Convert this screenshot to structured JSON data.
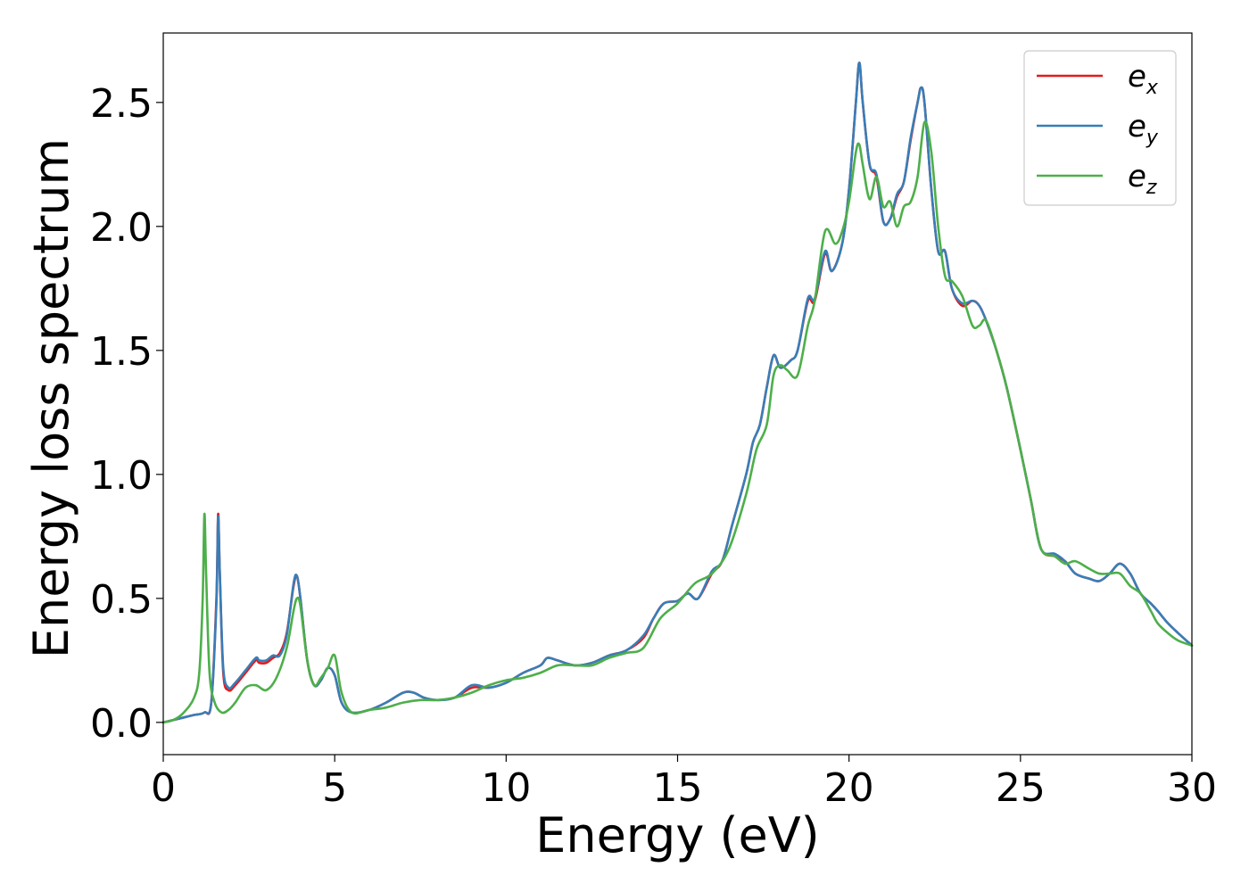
{
  "chart_data": {
    "type": "line",
    "xlabel": "Energy (eV)",
    "ylabel": "Energy loss spectrum",
    "xlim": [
      0,
      30
    ],
    "ylim": [
      -0.13,
      2.78
    ],
    "xticks": [
      0,
      5,
      10,
      15,
      20,
      25,
      30
    ],
    "xtick_labels": [
      "0",
      "5",
      "10",
      "15",
      "20",
      "25",
      "30"
    ],
    "yticks": [
      0.0,
      0.5,
      1.0,
      1.5,
      2.0,
      2.5
    ],
    "ytick_labels": [
      "0.0",
      "0.5",
      "1.0",
      "1.5",
      "2.0",
      "2.5"
    ],
    "grid": false,
    "legend_position": "top-right",
    "series": [
      {
        "name": "e",
        "subscript": "x",
        "color": "#e41a1c",
        "x": [
          0,
          0.3,
          0.6,
          0.9,
          1.2,
          1.4,
          1.55,
          1.6,
          1.65,
          1.75,
          1.9,
          2.1,
          2.4,
          2.7,
          2.8,
          3.0,
          3.2,
          3.4,
          3.6,
          3.8,
          3.9,
          4.0,
          4.2,
          4.4,
          4.6,
          4.8,
          5.0,
          5.2,
          5.5,
          6.0,
          6.5,
          7.0,
          7.3,
          7.6,
          8.0,
          8.5,
          9.0,
          9.5,
          10.0,
          10.5,
          11.0,
          11.2,
          11.5,
          12.0,
          12.5,
          13.0,
          13.5,
          14.0,
          14.3,
          14.6,
          15.0,
          15.3,
          15.6,
          16.0,
          16.3,
          16.6,
          17.0,
          17.2,
          17.4,
          17.6,
          17.8,
          18.0,
          18.3,
          18.5,
          18.8,
          19.0,
          19.3,
          19.5,
          19.8,
          20.0,
          20.2,
          20.3,
          20.4,
          20.6,
          20.8,
          21.0,
          21.2,
          21.4,
          21.6,
          21.8,
          22.0,
          22.1,
          22.2,
          22.4,
          22.6,
          22.8,
          23.0,
          23.3,
          23.6,
          23.8,
          24.0,
          24.3,
          24.6,
          25.0,
          25.3,
          25.6,
          26.0,
          26.3,
          26.6,
          27.0,
          27.3,
          27.6,
          27.9,
          28.2,
          28.5,
          28.8,
          29.0,
          29.3,
          29.6,
          30.0
        ],
        "values": [
          0,
          0.01,
          0.02,
          0.03,
          0.04,
          0.08,
          0.5,
          0.84,
          0.6,
          0.2,
          0.13,
          0.15,
          0.2,
          0.25,
          0.24,
          0.24,
          0.26,
          0.28,
          0.36,
          0.55,
          0.59,
          0.5,
          0.25,
          0.15,
          0.17,
          0.22,
          0.19,
          0.08,
          0.04,
          0.05,
          0.08,
          0.12,
          0.12,
          0.1,
          0.09,
          0.1,
          0.14,
          0.14,
          0.16,
          0.2,
          0.23,
          0.26,
          0.25,
          0.23,
          0.24,
          0.27,
          0.29,
          0.34,
          0.42,
          0.48,
          0.49,
          0.52,
          0.5,
          0.6,
          0.65,
          0.8,
          1.0,
          1.13,
          1.2,
          1.35,
          1.48,
          1.43,
          1.46,
          1.5,
          1.7,
          1.7,
          1.89,
          1.82,
          1.93,
          2.15,
          2.5,
          2.66,
          2.5,
          2.25,
          2.2,
          2.02,
          2.03,
          2.12,
          2.18,
          2.35,
          2.5,
          2.56,
          2.5,
          2.15,
          1.9,
          1.9,
          1.75,
          1.68,
          1.7,
          1.68,
          1.62,
          1.5,
          1.35,
          1.1,
          0.9,
          0.7,
          0.67,
          0.65,
          0.6,
          0.58,
          0.57,
          0.6,
          0.64,
          0.6,
          0.52,
          0.48,
          0.45,
          0.4,
          0.36,
          0.31
        ]
      },
      {
        "name": "e",
        "subscript": "y",
        "color": "#377eb8",
        "x": [
          0,
          0.3,
          0.6,
          0.9,
          1.2,
          1.4,
          1.55,
          1.6,
          1.65,
          1.75,
          1.9,
          2.1,
          2.4,
          2.7,
          2.8,
          3.0,
          3.2,
          3.4,
          3.6,
          3.8,
          3.9,
          4.0,
          4.2,
          4.4,
          4.6,
          4.8,
          5.0,
          5.2,
          5.5,
          6.0,
          6.5,
          7.0,
          7.3,
          7.6,
          8.0,
          8.5,
          9.0,
          9.5,
          10.0,
          10.5,
          11.0,
          11.2,
          11.5,
          12.0,
          12.5,
          13.0,
          13.5,
          14.0,
          14.3,
          14.6,
          15.0,
          15.3,
          15.6,
          16.0,
          16.3,
          16.6,
          17.0,
          17.2,
          17.4,
          17.6,
          17.8,
          18.0,
          18.3,
          18.5,
          18.8,
          19.0,
          19.3,
          19.5,
          19.8,
          20.0,
          20.2,
          20.3,
          20.4,
          20.6,
          20.8,
          21.0,
          21.2,
          21.4,
          21.6,
          21.8,
          22.0,
          22.1,
          22.2,
          22.4,
          22.6,
          22.8,
          23.0,
          23.3,
          23.6,
          23.8,
          24.0,
          24.3,
          24.6,
          25.0,
          25.3,
          25.6,
          26.0,
          26.3,
          26.6,
          27.0,
          27.3,
          27.6,
          27.9,
          28.2,
          28.5,
          28.8,
          29.0,
          29.3,
          29.6,
          30.0
        ],
        "values": [
          0,
          0.01,
          0.02,
          0.03,
          0.04,
          0.08,
          0.48,
          0.83,
          0.6,
          0.22,
          0.14,
          0.16,
          0.21,
          0.26,
          0.25,
          0.25,
          0.27,
          0.27,
          0.35,
          0.56,
          0.59,
          0.5,
          0.25,
          0.15,
          0.17,
          0.22,
          0.19,
          0.08,
          0.04,
          0.05,
          0.08,
          0.12,
          0.12,
          0.1,
          0.09,
          0.1,
          0.15,
          0.14,
          0.16,
          0.2,
          0.23,
          0.26,
          0.25,
          0.23,
          0.24,
          0.27,
          0.29,
          0.35,
          0.42,
          0.48,
          0.49,
          0.52,
          0.5,
          0.61,
          0.65,
          0.8,
          1.0,
          1.13,
          1.2,
          1.35,
          1.48,
          1.43,
          1.46,
          1.5,
          1.71,
          1.71,
          1.9,
          1.82,
          1.93,
          2.15,
          2.5,
          2.66,
          2.5,
          2.25,
          2.21,
          2.02,
          2.03,
          2.13,
          2.18,
          2.36,
          2.5,
          2.56,
          2.5,
          2.15,
          1.9,
          1.9,
          1.75,
          1.69,
          1.7,
          1.68,
          1.62,
          1.5,
          1.35,
          1.1,
          0.9,
          0.7,
          0.68,
          0.65,
          0.6,
          0.58,
          0.57,
          0.6,
          0.64,
          0.6,
          0.52,
          0.48,
          0.45,
          0.4,
          0.36,
          0.31
        ]
      },
      {
        "name": "e",
        "subscript": "z",
        "color": "#4daf4a",
        "x": [
          0,
          0.3,
          0.6,
          0.9,
          1.05,
          1.15,
          1.2,
          1.25,
          1.35,
          1.5,
          1.7,
          1.9,
          2.1,
          2.4,
          2.7,
          3.0,
          3.3,
          3.6,
          3.8,
          3.9,
          4.0,
          4.2,
          4.4,
          4.6,
          4.8,
          5.0,
          5.2,
          5.5,
          6.0,
          6.5,
          7.0,
          7.5,
          8.0,
          8.5,
          9.0,
          9.5,
          10.0,
          10.5,
          11.0,
          11.5,
          12.0,
          12.5,
          13.0,
          13.5,
          14.0,
          14.5,
          15.0,
          15.5,
          16.0,
          16.5,
          17.0,
          17.3,
          17.6,
          17.8,
          18.0,
          18.2,
          18.5,
          18.8,
          19.0,
          19.3,
          19.6,
          19.8,
          20.0,
          20.2,
          20.3,
          20.4,
          20.6,
          20.8,
          21.0,
          21.2,
          21.4,
          21.6,
          21.8,
          22.0,
          22.2,
          22.4,
          22.6,
          22.8,
          23.0,
          23.3,
          23.6,
          23.8,
          24.0,
          24.3,
          24.6,
          25.0,
          25.3,
          25.6,
          26.0,
          26.3,
          26.6,
          27.0,
          27.3,
          27.6,
          27.9,
          28.2,
          28.5,
          28.8,
          29.0,
          29.3,
          29.6,
          30.0
        ],
        "values": [
          0,
          0.01,
          0.04,
          0.1,
          0.2,
          0.5,
          0.84,
          0.6,
          0.2,
          0.08,
          0.04,
          0.05,
          0.08,
          0.14,
          0.15,
          0.13,
          0.18,
          0.3,
          0.45,
          0.5,
          0.47,
          0.25,
          0.15,
          0.18,
          0.22,
          0.27,
          0.12,
          0.04,
          0.05,
          0.06,
          0.08,
          0.09,
          0.09,
          0.1,
          0.12,
          0.15,
          0.17,
          0.18,
          0.2,
          0.23,
          0.23,
          0.23,
          0.26,
          0.28,
          0.3,
          0.42,
          0.48,
          0.56,
          0.6,
          0.7,
          0.92,
          1.1,
          1.2,
          1.4,
          1.44,
          1.42,
          1.4,
          1.6,
          1.7,
          1.98,
          1.93,
          1.98,
          2.1,
          2.3,
          2.33,
          2.25,
          2.11,
          2.2,
          2.08,
          2.1,
          2.0,
          2.08,
          2.1,
          2.2,
          2.42,
          2.3,
          2.0,
          1.8,
          1.78,
          1.72,
          1.6,
          1.6,
          1.62,
          1.5,
          1.35,
          1.1,
          0.9,
          0.7,
          0.67,
          0.64,
          0.65,
          0.62,
          0.6,
          0.6,
          0.6,
          0.55,
          0.52,
          0.45,
          0.4,
          0.36,
          0.33,
          0.31
        ]
      }
    ]
  }
}
